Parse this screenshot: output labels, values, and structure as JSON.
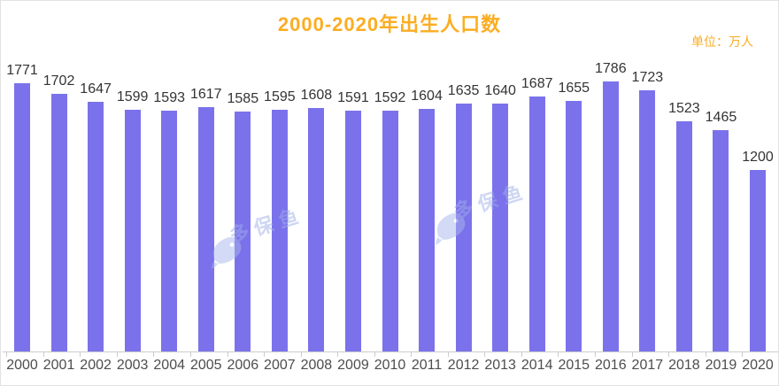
{
  "title": "2000-2020年出生人口数",
  "unit_label": "单位：万人",
  "watermark": {
    "text": "多保鱼"
  },
  "colors": {
    "bar": "#7B72EB",
    "title": "#FBAD22",
    "unit": "#FBAD22",
    "value_label": "#333333",
    "axis_label": "#4d4d4d",
    "axis_line": "#cccccc",
    "watermark": "#9FAEE9"
  },
  "chart_data": {
    "type": "bar",
    "title": "2000-2020年出生人口数",
    "unit": "万人",
    "categories": [
      "2000",
      "2001",
      "2002",
      "2003",
      "2004",
      "2005",
      "2006",
      "2007",
      "2008",
      "2009",
      "2010",
      "2011",
      "2012",
      "2013",
      "2014",
      "2015",
      "2016",
      "2017",
      "2018",
      "2019",
      "2020"
    ],
    "values": [
      1771,
      1702,
      1647,
      1599,
      1593,
      1617,
      1585,
      1595,
      1608,
      1591,
      1592,
      1604,
      1635,
      1640,
      1687,
      1655,
      1786,
      1723,
      1523,
      1465,
      1200
    ],
    "xlabel": "",
    "ylabel": "万人",
    "ylim": [
      0,
      1900
    ],
    "grid": false,
    "legend": false,
    "data_labels": true
  }
}
